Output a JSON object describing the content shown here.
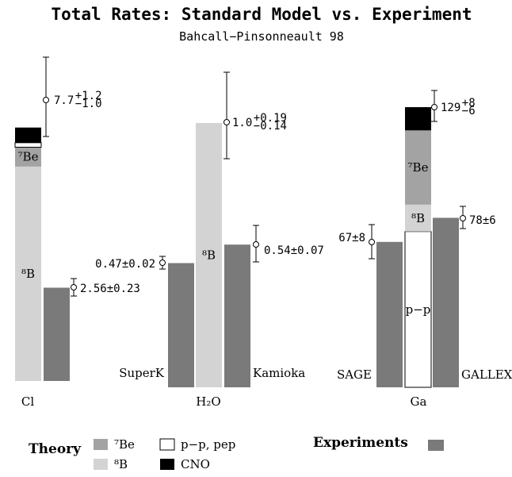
{
  "chart_data": {
    "type": "bar",
    "title": "Total Rates: Standard Model vs. Experiment",
    "subtitle": "Bahcall−Pinsonneault 98",
    "colors": {
      "Be7": "#a3a3a3",
      "B8": "#d3d3d3",
      "pp": "#ffffff",
      "CNO": "#000000",
      "experiment": "#7a7a7a"
    },
    "groups": [
      {
        "name": "Cl",
        "theory": {
          "total": "7.7",
          "err_up": "+1.2",
          "err_down": "−1.0",
          "segments": [
            {
              "component": "B8",
              "label": "⁸B",
              "fraction": 0.763
            },
            {
              "component": "Be7",
              "label": "⁷Be",
              "fraction": 0.069
            },
            {
              "component": "pp",
              "label": "",
              "fraction": 0.016
            },
            {
              "component": "CNO",
              "label": "",
              "fraction": 0.054
            }
          ]
        },
        "experiments": [
          {
            "name": "",
            "value_text": "2.56±0.23",
            "fraction": 0.332
          }
        ]
      },
      {
        "name": "H₂O",
        "theory": {
          "total": "1.0",
          "err_up": "+0.19",
          "err_down": "−0.14",
          "segments": [
            {
              "component": "B8",
              "label": "⁸B",
              "fraction": 1.0
            }
          ]
        },
        "experiments": [
          {
            "name": "SuperK",
            "value_text": "0.47±0.02",
            "fraction": 0.47
          },
          {
            "name": "Kamioka",
            "value_text": "0.54±0.07",
            "fraction": 0.54
          }
        ]
      },
      {
        "name": "Ga",
        "theory": {
          "total": "129",
          "err_up": "+8",
          "err_down": "−6",
          "segments": [
            {
              "component": "pp",
              "label": "p−p",
              "fraction": 0.556
            },
            {
              "component": "B8",
              "label": "⁸B",
              "fraction": 0.096
            },
            {
              "component": "Be7",
              "label": "⁷Be",
              "fraction": 0.265
            },
            {
              "component": "CNO",
              "label": "",
              "fraction": 0.083
            }
          ]
        },
        "experiments": [
          {
            "name": "SAGE",
            "value_text": "67±8",
            "fraction": 0.519
          },
          {
            "name": "GALLEX",
            "value_text": "78±6",
            "fraction": 0.605
          }
        ]
      }
    ],
    "legend": {
      "theory_title": "Theory",
      "experiments_title": "Experiments",
      "items": [
        {
          "component": "Be7",
          "label": "⁷Be"
        },
        {
          "component": "B8",
          "label": "⁸B"
        },
        {
          "component": "pp",
          "label": "p−p, pep"
        },
        {
          "component": "CNO",
          "label": "CNO"
        }
      ]
    }
  }
}
